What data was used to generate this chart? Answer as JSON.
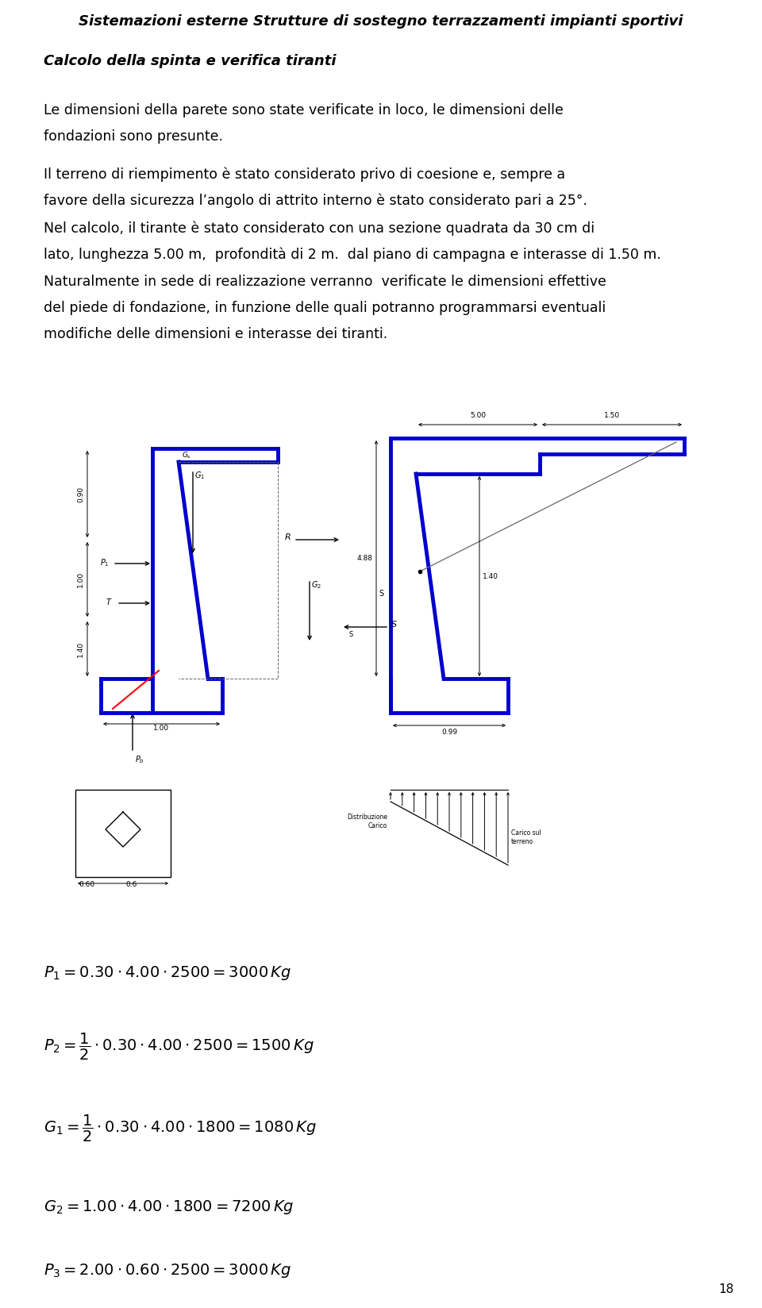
{
  "title": "Sistemazioni esterne Strutture di sostegno terrazzamenti impianti sportivi",
  "subtitle": "Calcolo della spinta e verifica tiranti",
  "para1_line1": "Le dimensioni della parete sono state verificate in loco, le dimensioni delle",
  "para1_line2": "fondazioni sono presunte.",
  "para2_line1": "Il terreno di riempimento è stato considerato privo di coesione e, sempre a",
  "para2_line2": "favore della sicurezza l’angolo di attrito interno è stato considerato pari a 25°.",
  "para3_line1": "Nel calcolo, il tirante è stato considerato con una sezione quadrata da 30 cm di",
  "para3_line2": "lato, lunghezza 5.00 m,  profondità di 2 m.  dal piano di campagna e interasse di 1.50 m.",
  "para4_line1": "Naturalmente in sede di realizzazione verranno  verificate le dimensioni effettive",
  "para4_line2": "del piede di fondazione, in funzione delle quali potranno programmarsi eventuali",
  "para4_line3": "modifiche delle dimensioni e interasse dei tiranti.",
  "page_number": "18",
  "bg_color": "#ffffff",
  "text_color": "#000000",
  "blue_color": "#0000cd",
  "gray_color": "#666666"
}
